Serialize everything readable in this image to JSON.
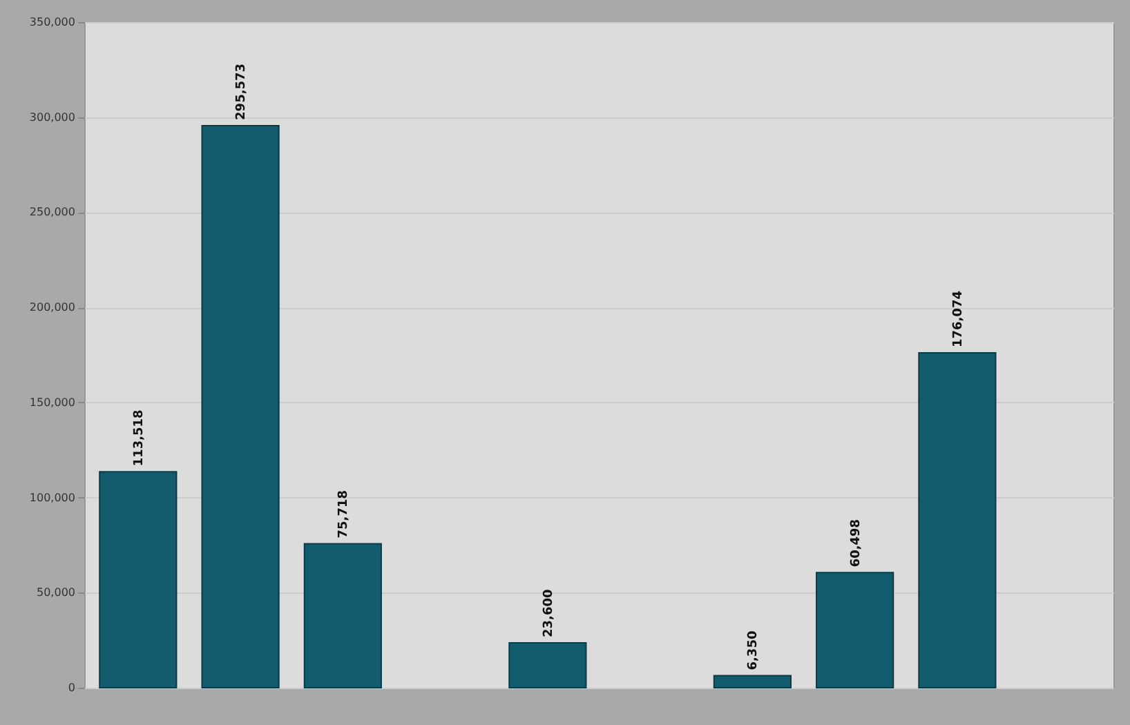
{
  "chart_data": {
    "type": "bar",
    "categories": [
      null,
      null,
      null,
      null,
      null,
      null,
      null,
      null,
      null,
      null
    ],
    "values": [
      113518,
      295573,
      75718,
      null,
      23600,
      null,
      6350,
      60498,
      176074,
      null
    ],
    "value_labels": [
      "113,518",
      "295,573",
      "75,718",
      null,
      "23,600",
      null,
      "6,350",
      "60,498",
      "176,074",
      null
    ],
    "color": "#125c6e",
    "ylim": [
      0,
      350000
    ],
    "yticks": [
      0,
      {
        "value": 50000,
        "label": "50,000"
      },
      {
        "value": 100000,
        "label": "100,000"
      },
      {
        "value": 150000,
        "label": "150,000"
      },
      {
        "value": 200000,
        "label": "200,000"
      },
      {
        "value": 250000,
        "label": "250,000"
      },
      {
        "value": 300000,
        "label": "300,000"
      },
      {
        "value": 350000,
        "label": "350,000"
      }
    ],
    "grid": "y"
  }
}
